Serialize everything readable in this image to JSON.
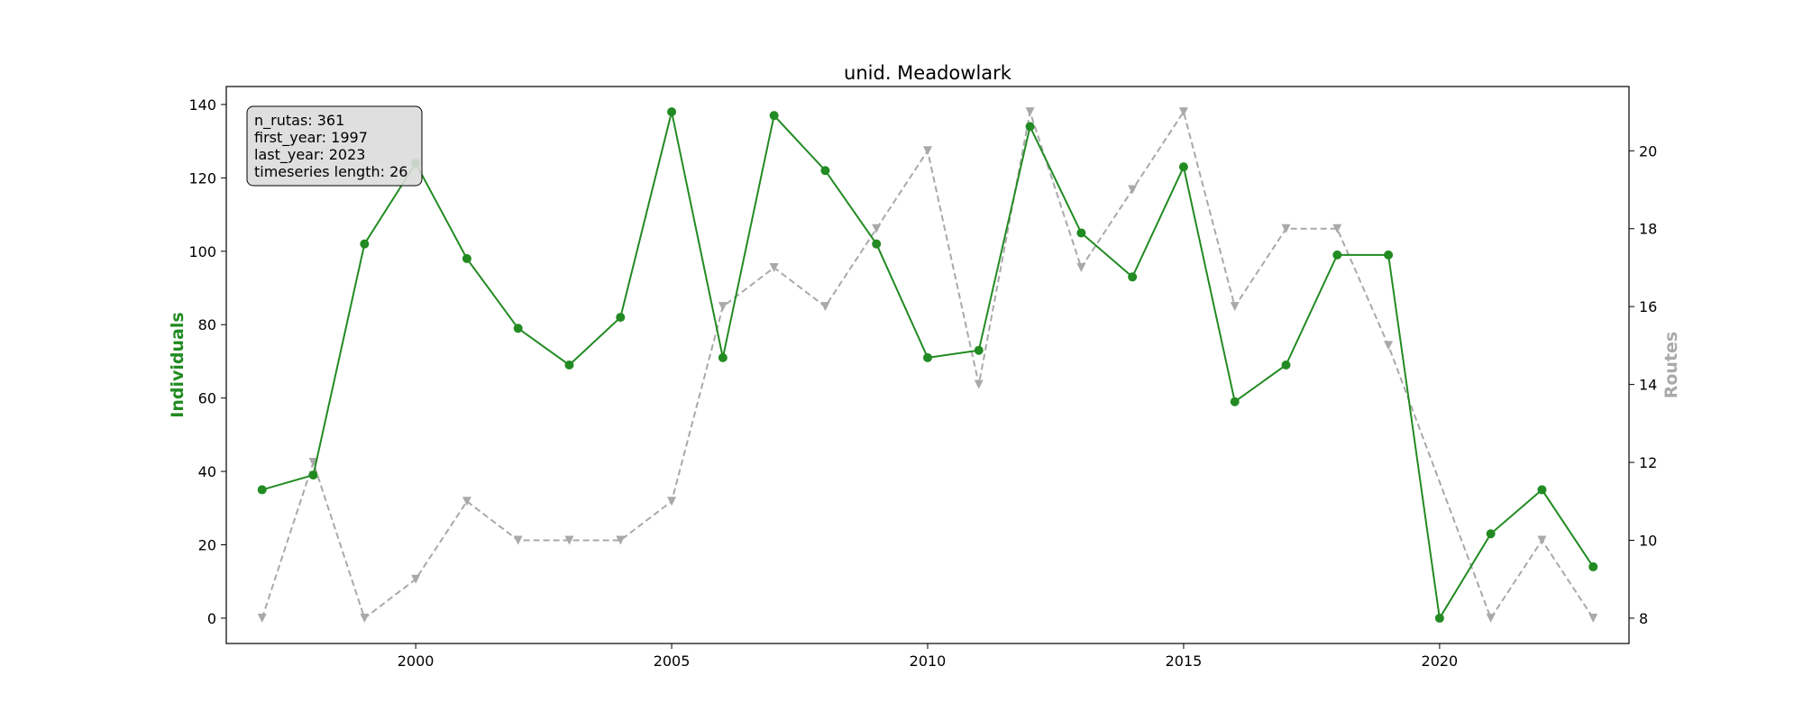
{
  "chart_data": {
    "type": "line",
    "title": "unid. Meadowlark",
    "xlabel": "",
    "x": [
      1997,
      1998,
      1999,
      2000,
      2001,
      2002,
      2003,
      2004,
      2005,
      2006,
      2007,
      2008,
      2009,
      2010,
      2011,
      2012,
      2013,
      2014,
      2015,
      2016,
      2017,
      2018,
      2019,
      2020,
      2021,
      2022,
      2023
    ],
    "xlim": [
      1996.3,
      2023.7
    ],
    "xticks": [
      2000,
      2005,
      2010,
      2015,
      2020
    ],
    "series": [
      {
        "name": "Individuals",
        "axis": "left",
        "color": "#228b22",
        "style": "solid",
        "marker": "circle",
        "values": [
          35,
          39,
          102,
          124,
          98,
          79,
          69,
          82,
          138,
          71,
          137,
          122,
          102,
          71,
          73,
          134,
          105,
          93,
          123,
          59,
          69,
          99,
          99,
          0,
          23,
          35,
          14
        ]
      },
      {
        "name": "Routes",
        "axis": "right",
        "color": "#a9a9a9",
        "style": "dashed",
        "marker": "triangle-down",
        "values": [
          8,
          12,
          8,
          9,
          11,
          10,
          10,
          10,
          11,
          16,
          17,
          16,
          18,
          20,
          14,
          21,
          17,
          19,
          21,
          16,
          18,
          18,
          15,
          null,
          8,
          10,
          8
        ]
      }
    ],
    "left_axis": {
      "label": "Individuals",
      "ylim": [
        -6.9,
        144.9
      ],
      "ticks": [
        0,
        20,
        40,
        60,
        80,
        100,
        120,
        140
      ]
    },
    "right_axis": {
      "label": "Routes",
      "ylim": [
        7.35,
        21.65
      ],
      "ticks": [
        8,
        10,
        12,
        14,
        16,
        18,
        20
      ]
    },
    "grid": false,
    "annotation": {
      "lines": [
        "n_rutas: 361",
        "first_year: 1997",
        "last_year: 2023",
        "timeseries length: 26"
      ],
      "position": "top-left"
    }
  }
}
